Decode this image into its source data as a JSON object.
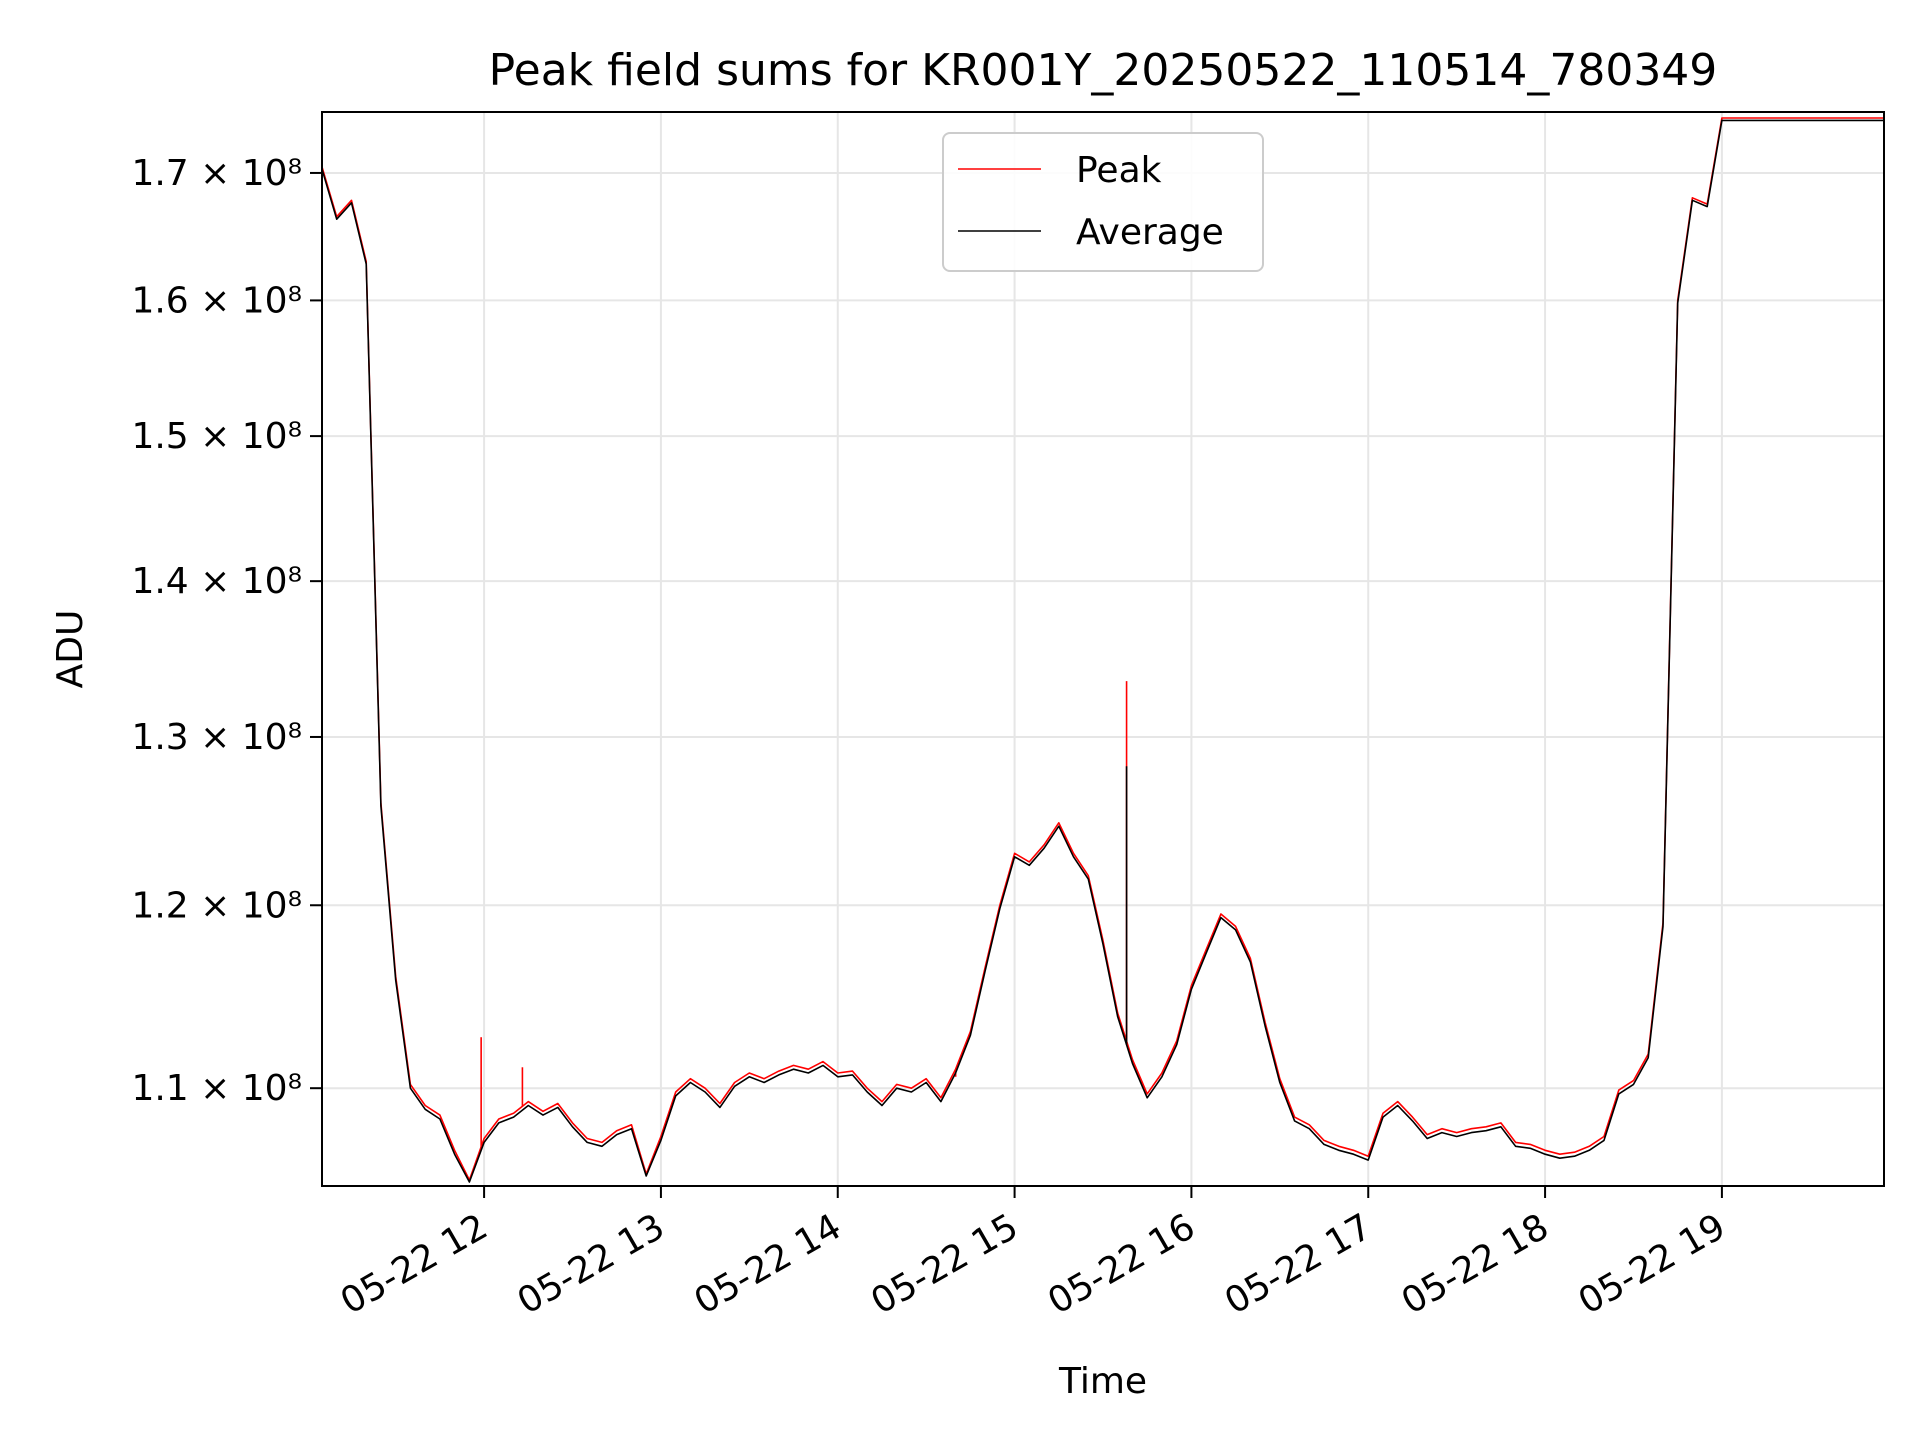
{
  "chart_data": {
    "type": "line",
    "title": "Peak field sums for KR001Y_20250522_110514_780349",
    "xlabel": "Time",
    "ylabel": "ADU",
    "yscale": "log",
    "grid": true,
    "legend_position": "top-center",
    "x_tick_labels": [
      "05-22 12",
      "05-22 13",
      "05-22 14",
      "05-22 15",
      "05-22 16",
      "05-22 17",
      "05-22 18",
      "05-22 19"
    ],
    "x_range": [
      "2025-05-22 11:05",
      "2025-05-22 19:55"
    ],
    "y_tick_labels": [
      {
        "value": 110000000,
        "label": "1.1 × 10⁸"
      },
      {
        "value": 120000000,
        "label": "1.2 × 10⁸"
      },
      {
        "value": 130000000,
        "label": "1.3 × 10⁸"
      },
      {
        "value": 140000000,
        "label": "1.4 × 10⁸"
      },
      {
        "value": 150000000,
        "label": "1.5 × 10⁸"
      },
      {
        "value": 160000000,
        "label": "1.6 × 10⁸"
      },
      {
        "value": 170000000,
        "label": "1.7 × 10⁸"
      }
    ],
    "ylim": [
      105000000,
      175000000
    ],
    "x": [
      "11:05",
      "11:10",
      "11:15",
      "11:20",
      "11:25",
      "11:30",
      "11:35",
      "11:40",
      "11:45",
      "11:50",
      "11:55",
      "12:00",
      "12:05",
      "12:10",
      "12:15",
      "12:20",
      "12:25",
      "12:30",
      "12:35",
      "12:40",
      "12:45",
      "12:50",
      "12:55",
      "13:00",
      "13:05",
      "13:10",
      "13:15",
      "13:20",
      "13:25",
      "13:30",
      "13:35",
      "13:40",
      "13:45",
      "13:50",
      "13:55",
      "14:00",
      "14:05",
      "14:10",
      "14:15",
      "14:20",
      "14:25",
      "14:30",
      "14:35",
      "14:40",
      "14:45",
      "14:50",
      "14:55",
      "15:00",
      "15:05",
      "15:10",
      "15:15",
      "15:20",
      "15:25",
      "15:30",
      "15:35",
      "15:40",
      "15:45",
      "15:50",
      "15:55",
      "16:00",
      "16:05",
      "16:10",
      "16:15",
      "16:20",
      "16:25",
      "16:30",
      "16:35",
      "16:40",
      "16:45",
      "16:50",
      "16:55",
      "17:00",
      "17:05",
      "17:10",
      "17:15",
      "17:20",
      "17:25",
      "17:30",
      "17:35",
      "17:40",
      "17:45",
      "17:50",
      "17:55",
      "18:00",
      "18:05",
      "18:10",
      "18:15",
      "18:20",
      "18:25",
      "18:30",
      "18:35",
      "18:40",
      "18:45",
      "18:50",
      "18:55",
      "19:00",
      "19:05",
      "19:10",
      "19:15",
      "19:20",
      "19:25",
      "19:30",
      "19:35",
      "19:40",
      "19:45",
      "19:50",
      "19:55"
    ],
    "series": [
      {
        "name": "Peak",
        "color": "#ff0000",
        "values": [
          170500000,
          166500000,
          167800000,
          163000000,
          126000000,
          116000000,
          110200000,
          109100000,
          108600000,
          106800000,
          105300000,
          107400000,
          108400000,
          108700000,
          109300000,
          108800000,
          109200000,
          108200000,
          107400000,
          107200000,
          107800000,
          108100000,
          105600000,
          107500000,
          109800000,
          110500000,
          110000000,
          109200000,
          110300000,
          110800000,
          110500000,
          110900000,
          111200000,
          111000000,
          111400000,
          110800000,
          110900000,
          110000000,
          109300000,
          110200000,
          110000000,
          110500000,
          109500000,
          111000000,
          113000000,
          116500000,
          120000000,
          123000000,
          122500000,
          123500000,
          124800000,
          123000000,
          121700000,
          118000000,
          114000000,
          111500000,
          109700000,
          110800000,
          112500000,
          115500000,
          117500000,
          119500000,
          118800000,
          117000000,
          113500000,
          110500000,
          108500000,
          108100000,
          107300000,
          107000000,
          106800000,
          106500000,
          108700000,
          109300000,
          108500000,
          107600000,
          107900000,
          107700000,
          107900000,
          108000000,
          108200000,
          107200000,
          107100000,
          106800000,
          106600000,
          106700000,
          107000000,
          107500000,
          109900000,
          110400000,
          111800000,
          119000000,
          160000000,
          168000000,
          167500000,
          174500000,
          174500000,
          174500000,
          174500000,
          174500000,
          174500000,
          174500000,
          174500000,
          174500000,
          174500000,
          174500000,
          174500000
        ],
        "spikes": [
          {
            "x": "11:59",
            "value": 112700000
          },
          {
            "x": "12:13",
            "value": 111100000
          },
          {
            "x": "14:40",
            "value": 110600000
          },
          {
            "x": "15:38",
            "value": 133500000
          }
        ]
      },
      {
        "name": "Average",
        "color": "#000000",
        "values": [
          170300000,
          166300000,
          167600000,
          162800000,
          125800000,
          115800000,
          110000000,
          108900000,
          108400000,
          106600000,
          105200000,
          107200000,
          108200000,
          108500000,
          109100000,
          108600000,
          109000000,
          108000000,
          107200000,
          107000000,
          107600000,
          107900000,
          105500000,
          107300000,
          109600000,
          110300000,
          109800000,
          109000000,
          110100000,
          110600000,
          110300000,
          110700000,
          111000000,
          110800000,
          111200000,
          110600000,
          110700000,
          109800000,
          109100000,
          110000000,
          109800000,
          110300000,
          109300000,
          110800000,
          112800000,
          116300000,
          119800000,
          122800000,
          122300000,
          123300000,
          124600000,
          122800000,
          121500000,
          117800000,
          113800000,
          111300000,
          109500000,
          110600000,
          112300000,
          115300000,
          117300000,
          119300000,
          118600000,
          116800000,
          113300000,
          110300000,
          108300000,
          107900000,
          107100000,
          106800000,
          106600000,
          106300000,
          108500000,
          109100000,
          108300000,
          107400000,
          107700000,
          107500000,
          107700000,
          107800000,
          108000000,
          107000000,
          106900000,
          106600000,
          106400000,
          106500000,
          106800000,
          107300000,
          109700000,
          110200000,
          111600000,
          118800000,
          159800000,
          167800000,
          167300000,
          174300000,
          174300000,
          174300000,
          174300000,
          174300000,
          174300000,
          174300000,
          174300000,
          174300000,
          174300000,
          174300000,
          174300000
        ],
        "spikes": [
          {
            "x": "15:38",
            "value": 128200000
          }
        ]
      }
    ]
  }
}
